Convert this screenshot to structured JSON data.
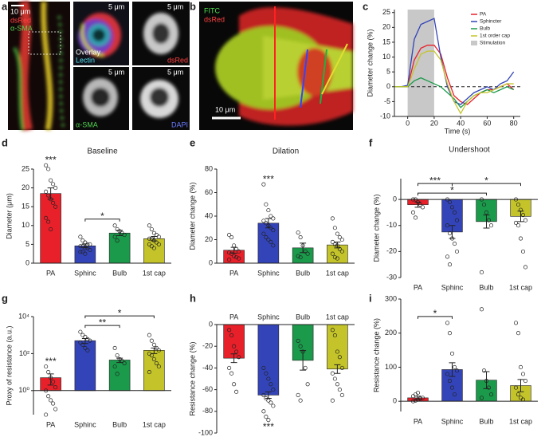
{
  "panel_a": {
    "label": "a",
    "scale_bar": "10 μm",
    "channels": [
      "dsRed",
      "α-SMA"
    ],
    "tiles": [
      {
        "scale_bar": "5 μm",
        "channels": [
          "Overlay",
          "Lectin"
        ]
      },
      {
        "scale_bar": "5 μm",
        "channels": [
          "dsRed"
        ]
      },
      {
        "scale_bar": "5 μm",
        "channels": [
          "α-SMA"
        ]
      },
      {
        "scale_bar": "5 μm",
        "channels": [
          "DAPI"
        ]
      }
    ]
  },
  "panel_b": {
    "label": "b",
    "channels": [
      "FITC",
      "dsRed"
    ],
    "scale_bar": "10 μm"
  },
  "chart_data": [
    {
      "type": "line",
      "panel": "c",
      "xlabel": "Time (s)",
      "ylabel": "Diameter change (%)",
      "x": [
        -10,
        -5,
        0,
        5,
        10,
        15,
        20,
        25,
        30,
        35,
        40,
        45,
        50,
        55,
        60,
        65,
        70,
        75,
        80
      ],
      "series": [
        {
          "name": "PA",
          "color": "#e8202a",
          "values": [
            0,
            0,
            0,
            9,
            13,
            14,
            14,
            11,
            3,
            -3,
            -5,
            -6,
            -4,
            -2,
            -1,
            -1,
            0,
            1,
            -1
          ]
        },
        {
          "name": "Sphincter",
          "color": "#3344b8",
          "values": [
            0,
            0,
            0.5,
            16,
            21,
            22,
            23,
            10,
            0,
            -5,
            -6,
            -4,
            -2,
            -1,
            0,
            -1,
            1,
            2,
            5
          ]
        },
        {
          "name": "Bulb",
          "color": "#1a9a4a",
          "values": [
            0,
            0,
            0,
            2,
            3,
            2,
            1,
            0,
            -2,
            -4,
            -7,
            -5,
            -3,
            -2,
            -1,
            -2,
            -1,
            0,
            -1
          ]
        },
        {
          "name": "1st order cap",
          "color": "#c4c42a",
          "values": [
            0,
            0,
            0,
            6,
            11,
            12,
            12,
            9,
            1,
            -5,
            -9,
            -5,
            -3,
            -2,
            -2,
            -1,
            0,
            1,
            1
          ]
        }
      ],
      "stimulation": {
        "name": "Stimulation",
        "span": [
          0,
          20
        ],
        "color": "#c8c8c8"
      },
      "xlim": [
        -10,
        85
      ],
      "xticks": [
        0,
        20,
        40,
        60,
        80
      ],
      "ylim": [
        -10,
        26
      ],
      "yticks": [
        -10,
        -5,
        0,
        5,
        10,
        15,
        20,
        25
      ],
      "legend": "top-right"
    },
    {
      "type": "bar",
      "panel": "d",
      "title": "Baseline",
      "ylabel": "Diameter (μm)",
      "categories": [
        "PA",
        "Sphinc",
        "Bulb",
        "1st cap"
      ],
      "colors": [
        "#e8202a",
        "#3344b8",
        "#1a9a4a",
        "#c4c42a"
      ],
      "values": [
        18.5,
        4.6,
        8.0,
        6.5
      ],
      "errors": [
        1.5,
        0.5,
        0.7,
        0.6
      ],
      "points": [
        [
          26,
          25,
          22,
          21,
          20,
          19,
          18,
          17,
          16,
          15,
          12,
          11,
          9
        ],
        [
          7,
          6,
          5.5,
          5,
          5,
          4.5,
          4.5,
          4,
          4,
          3.5,
          3,
          3,
          2.5
        ],
        [
          10,
          9,
          8.5,
          8,
          7.5,
          7,
          6
        ],
        [
          10,
          9,
          8,
          7.5,
          7,
          6.5,
          6.5,
          6,
          5.5,
          5,
          5,
          4.5,
          4
        ]
      ],
      "ylim": [
        0,
        25
      ],
      "yticks": [
        0,
        5,
        10,
        15,
        20,
        25
      ],
      "annotations": [
        {
          "category": 0,
          "text": "***"
        }
      ],
      "brackets": [
        {
          "from": 1,
          "to": 2,
          "text": "*"
        }
      ]
    },
    {
      "type": "bar",
      "panel": "e",
      "title": "Dilation",
      "ylabel": "Diameter change (%)",
      "categories": [
        "PA",
        "Sphinc",
        "Bulb",
        "1st cap"
      ],
      "colors": [
        "#e8202a",
        "#3344b8",
        "#1a9a4a",
        "#c4c42a"
      ],
      "values": [
        11,
        34,
        13,
        15.5
      ],
      "errors": [
        2.5,
        4,
        4,
        2.5
      ],
      "points": [
        [
          24,
          22,
          15,
          12,
          10,
          9,
          8,
          6,
          5,
          4,
          3
        ],
        [
          67,
          50,
          45,
          40,
          38,
          36,
          34,
          32,
          30,
          28,
          25,
          22,
          20,
          18,
          15
        ],
        [
          26,
          22,
          15,
          10,
          8,
          6,
          5
        ],
        [
          38,
          30,
          25,
          22,
          20,
          18,
          16,
          15,
          12,
          10,
          8,
          5,
          4
        ]
      ],
      "ylim": [
        0,
        80
      ],
      "yticks": [
        0,
        20,
        40,
        60,
        80
      ],
      "annotations": [
        {
          "category": 1,
          "text": "***"
        }
      ],
      "brackets": []
    },
    {
      "type": "bar",
      "panel": "f",
      "title": "Undershoot",
      "ylabel": "Diameter change (%)",
      "categories": [
        "PA",
        "Sphinc",
        "Bulb",
        "1st cap"
      ],
      "colors": [
        "#e8202a",
        "#3344b8",
        "#1a9a4a",
        "#c4c42a"
      ],
      "values": [
        -2,
        -12.5,
        -8.5,
        -6.5
      ],
      "errors": [
        1,
        2.5,
        2.5,
        2
      ],
      "points": [
        [
          0,
          0,
          -1,
          -2,
          -3,
          -5,
          -7
        ],
        [
          0,
          -1,
          -3,
          -5,
          -8,
          -10,
          -13,
          -15,
          -17,
          -20,
          -22,
          -25
        ],
        [
          0,
          -2,
          -5,
          -8,
          -10,
          -28
        ],
        [
          0,
          -2,
          -4,
          -6,
          -8,
          -9,
          -10,
          -15,
          -20,
          -26
        ]
      ],
      "ylim": [
        -30,
        8
      ],
      "yticks": [
        -30,
        -20,
        -10,
        0
      ],
      "annotations": [],
      "brackets": [
        {
          "from": 0,
          "to": 2,
          "text": "*"
        },
        {
          "from": 0,
          "to": 1,
          "text": "***"
        },
        {
          "from": 1,
          "to": 3,
          "text": "*"
        }
      ]
    },
    {
      "type": "bar",
      "panel": "g",
      "ylabel": "Proxy of resistance (a.u.)",
      "categories": [
        "PA",
        "Sphinc",
        "Bulb",
        "1st cap"
      ],
      "log": true,
      "colors": [
        "#e8202a",
        "#3344b8",
        "#1a9a4a",
        "#c4c42a"
      ],
      "values": [
        5,
        500,
        45,
        150
      ],
      "errors": [
        3,
        150,
        12,
        50
      ],
      "points": [
        [
          20,
          10,
          5,
          3,
          1.5,
          1,
          0.5,
          0.3,
          0.2,
          0.1,
          0.05
        ],
        [
          1500,
          1000,
          800,
          600,
          500,
          400,
          300,
          200,
          150
        ],
        [
          200,
          80,
          50,
          40,
          30,
          20,
          8
        ],
        [
          1000,
          500,
          300,
          200,
          150,
          100,
          80,
          50,
          30,
          20,
          10
        ]
      ],
      "ylim": [
        0.05,
        10000
      ],
      "yticks": [
        {
          "value": 1,
          "label": "10⁰"
        },
        {
          "value": 100,
          "label": "10²"
        },
        {
          "value": 10000,
          "label": "10⁴"
        }
      ],
      "annotations": [
        {
          "category": 0,
          "text": "***"
        }
      ],
      "brackets": [
        {
          "from": 1,
          "to": 2,
          "text": "**"
        },
        {
          "from": 1,
          "to": 3,
          "text": "*"
        }
      ]
    },
    {
      "type": "bar",
      "panel": "h",
      "ylabel": "Resistance change (%)",
      "categories": [
        "PA",
        "Sphinc",
        "Bulb",
        "1st cap"
      ],
      "x_axis": "top",
      "colors": [
        "#e8202a",
        "#3344b8",
        "#1a9a4a",
        "#c4c42a"
      ],
      "values": [
        -31,
        -65,
        -33,
        -41
      ],
      "errors": [
        4,
        3,
        9,
        4
      ],
      "points": [
        [
          -5,
          -10,
          -20,
          -25,
          -30,
          -40,
          -45,
          -55,
          -62
        ],
        [
          -40,
          -45,
          -50,
          -55,
          -60,
          -65,
          -68,
          -70,
          -72,
          -75,
          -80,
          -85,
          -88
        ],
        [
          -15,
          -20,
          -25,
          -40,
          -55,
          -65,
          -70
        ],
        [
          -5,
          -10,
          -25,
          -30,
          -40,
          -45,
          -50,
          -55,
          -60,
          -65,
          -70
        ]
      ],
      "ylim": [
        -100,
        0
      ],
      "yticks": [
        -100,
        -80,
        -60,
        -40,
        -20,
        0
      ],
      "annotations": [
        {
          "category": 1,
          "text": "***"
        }
      ],
      "brackets": []
    },
    {
      "type": "bar",
      "panel": "i",
      "ylabel": "Resistance change (%)",
      "categories": [
        "PA",
        "Sphinc",
        "Bulb",
        "1st cap"
      ],
      "colors": [
        "#e8202a",
        "#3344b8",
        "#1a9a4a",
        "#c4c42a"
      ],
      "values": [
        10,
        93,
        62,
        46
      ],
      "errors": [
        5,
        20,
        25,
        18
      ],
      "points": [
        [
          0,
          2,
          5,
          8,
          10,
          15,
          20,
          25
        ],
        [
          230,
          200,
          140,
          100,
          90,
          80,
          60,
          40,
          20
        ],
        [
          270,
          90,
          60,
          40,
          20,
          10
        ],
        [
          230,
          200,
          100,
          80,
          60,
          40,
          20,
          10,
          5
        ]
      ],
      "ylim": [
        -30,
        300
      ],
      "yticks": [
        0,
        100,
        200,
        300
      ],
      "annotations": [],
      "brackets": [
        {
          "from": 0,
          "to": 1,
          "text": "*"
        }
      ]
    }
  ]
}
